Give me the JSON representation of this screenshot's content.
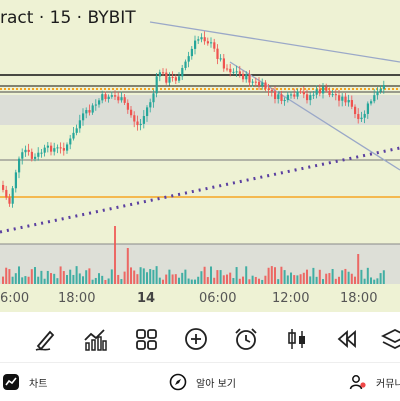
{
  "chart": {
    "title": "ract · 15 · BYBIT",
    "time_labels": [
      "6:00",
      "18:00",
      "14",
      "06:00",
      "12:00",
      "18:00"
    ]
  },
  "toolbar": {
    "tools": [
      "draw-pen-icon",
      "indicators-icon",
      "layout-grid-icon",
      "add-icon",
      "alarm-icon",
      "candles-icon",
      "replay-icon",
      "layers-icon"
    ]
  },
  "nav": {
    "chart_label": "차트",
    "explore_label": "알아 보기",
    "community_label": "커뮤니"
  },
  "colors": {
    "up": "#26a69a",
    "down": "#ef5350",
    "bg": "#eef2d4",
    "accent": "#f5a623"
  }
}
